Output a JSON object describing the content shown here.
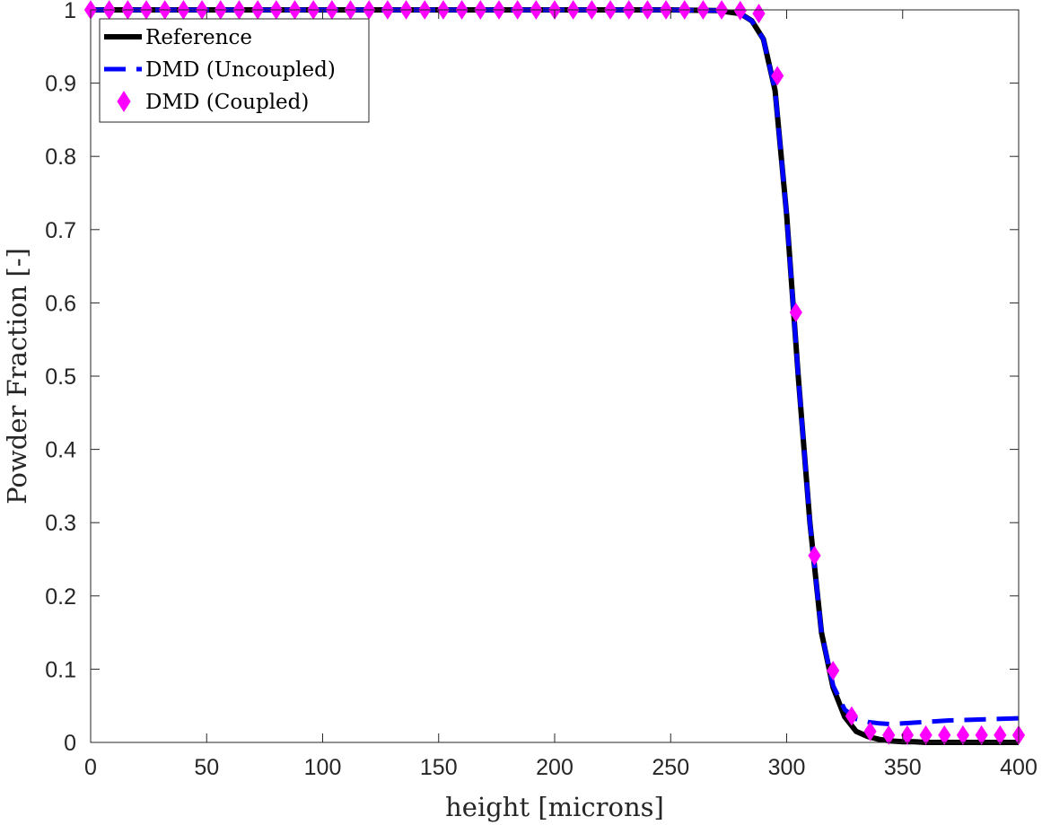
{
  "chart_data": {
    "type": "line",
    "xlabel": "height [microns]",
    "ylabel": "Powder Fraction [-]",
    "xlim": [
      0,
      400
    ],
    "ylim": [
      0,
      1
    ],
    "xticks": [
      0,
      50,
      100,
      150,
      200,
      250,
      300,
      350,
      400
    ],
    "yticks": [
      0,
      0.1,
      0.2,
      0.3,
      0.4,
      0.5,
      0.6,
      0.7,
      0.8,
      0.9,
      1
    ],
    "ytick_labels": [
      "0",
      "0.1",
      "0.2",
      "0.3",
      "0.4",
      "0.5",
      "0.6",
      "0.7",
      "0.8",
      "0.9",
      "1"
    ],
    "grid": false,
    "legend_position": "top-left",
    "series": [
      {
        "name": "Reference",
        "style": "solid",
        "color": "#000000",
        "x": [
          0,
          50,
          100,
          150,
          200,
          250,
          270,
          280,
          285,
          290,
          295,
          300,
          305,
          310,
          315,
          320,
          325,
          330,
          335,
          340,
          345,
          350,
          355,
          360,
          370,
          380,
          390,
          400
        ],
        "y": [
          1,
          1,
          1,
          1,
          1,
          1,
          0.999,
          0.995,
          0.985,
          0.96,
          0.89,
          0.72,
          0.5,
          0.3,
          0.15,
          0.075,
          0.035,
          0.015,
          0.008,
          0.004,
          0.002,
          0.001,
          0.001,
          0,
          0,
          0,
          0,
          0
        ]
      },
      {
        "name": "DMD (Uncoupled)",
        "style": "dashed",
        "color": "#0000ff",
        "x": [
          0,
          50,
          100,
          150,
          200,
          250,
          270,
          280,
          285,
          290,
          295,
          300,
          305,
          310,
          315,
          320,
          325,
          330,
          335,
          340,
          345,
          350,
          360,
          370,
          380,
          390,
          400
        ],
        "y": [
          1,
          1,
          1,
          1,
          1,
          1,
          0.999,
          0.995,
          0.985,
          0.96,
          0.89,
          0.72,
          0.5,
          0.3,
          0.15,
          0.078,
          0.045,
          0.032,
          0.028,
          0.026,
          0.025,
          0.026,
          0.028,
          0.03,
          0.031,
          0.032,
          0.033
        ]
      },
      {
        "name": "DMD (Coupled)",
        "style": "marker",
        "marker": "diamond",
        "color": "#ff00ff",
        "x": [
          0,
          8,
          16,
          24,
          32,
          40,
          48,
          56,
          64,
          72,
          80,
          88,
          96,
          104,
          112,
          120,
          128,
          136,
          144,
          152,
          160,
          168,
          176,
          184,
          192,
          200,
          208,
          216,
          224,
          232,
          240,
          248,
          256,
          264,
          272,
          280,
          288,
          296,
          304,
          312,
          320,
          328,
          336,
          344,
          352,
          360,
          368,
          376,
          384,
          392,
          400
        ],
        "y": [
          1,
          1,
          1,
          1,
          1,
          1,
          1,
          1,
          1,
          1,
          1,
          1,
          1,
          1,
          1,
          1,
          1,
          1,
          1,
          1,
          1,
          1,
          1,
          1,
          1,
          1,
          1,
          1,
          1,
          1,
          1,
          1,
          1,
          1,
          1,
          0.999,
          0.995,
          0.91,
          0.587,
          0.255,
          0.098,
          0.036,
          0.015,
          0.01,
          0.01,
          0.01,
          0.01,
          0.01,
          0.01,
          0.01,
          0.01
        ]
      }
    ]
  }
}
